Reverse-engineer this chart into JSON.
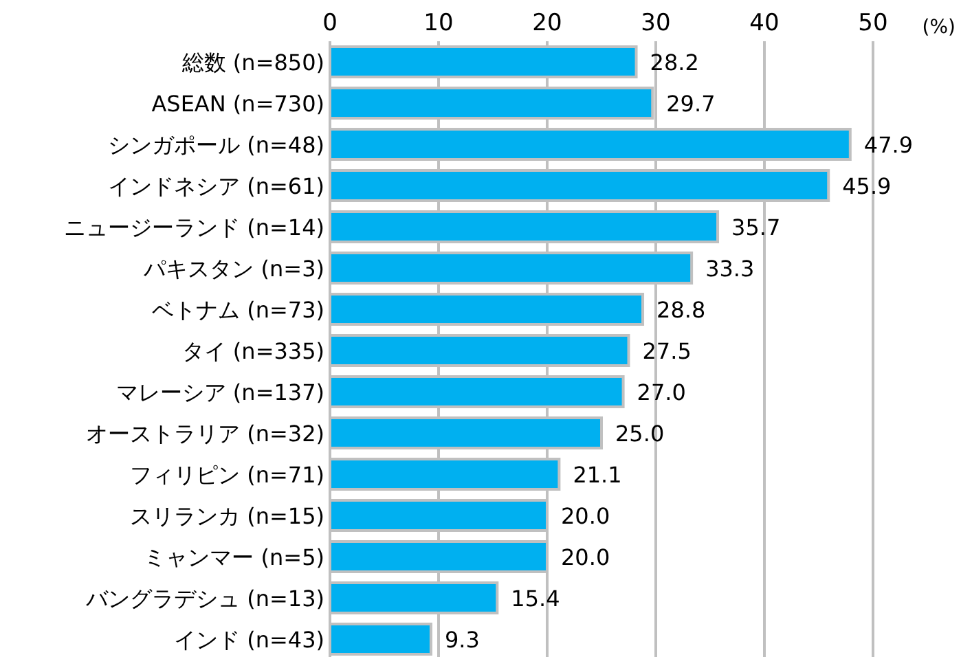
{
  "chart_data": {
    "type": "bar",
    "orientation": "horizontal",
    "xlabel": "(%)",
    "categories": [
      "総数 (n=850)",
      "ASEAN (n=730)",
      "シンガポール (n=48)",
      "インドネシア (n=61)",
      "ニュージーランド (n=14)",
      "パキスタン (n=3)",
      "ベトナム (n=73)",
      "タイ (n=335)",
      "マレーシア (n=137)",
      "オーストラリア (n=32)",
      "フィリピン (n=71)",
      "スリランカ (n=15)",
      "ミャンマー (n=5)",
      "バングラデシュ (n=13)",
      "インド (n=43)"
    ],
    "values": [
      28.2,
      29.7,
      47.9,
      45.9,
      35.7,
      33.3,
      28.8,
      27.5,
      27.0,
      25.0,
      21.1,
      20.0,
      20.0,
      15.4,
      9.3
    ],
    "value_labels": [
      "28.2",
      "29.7",
      "47.9",
      "45.9",
      "35.7",
      "33.3",
      "28.8",
      "27.5",
      "27.0",
      "25.0",
      "21.1",
      "20.0",
      "20.0",
      "15.4",
      "9.3"
    ],
    "color": "#00b0f0",
    "xlim": [
      0,
      50
    ],
    "xticks": [
      0,
      10,
      20,
      30,
      40,
      50
    ],
    "grid": "x"
  }
}
